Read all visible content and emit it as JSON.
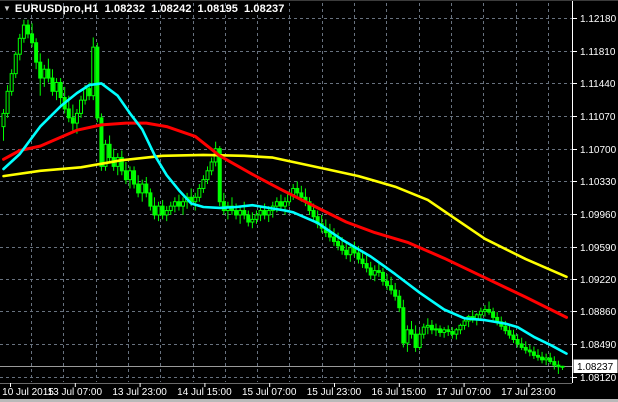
{
  "window": {
    "dropdown_icon": "▼",
    "title_symbol": "EURUSDpro,H1",
    "title_open": "1.08232",
    "title_high": "1.08242",
    "title_low": "1.08195",
    "title_close": "1.08237"
  },
  "chart_data": {
    "type": "candlestick",
    "symbol": "EURUSDpro",
    "timeframe": "H1",
    "title": "EURUSDpro,H1  1.08232 1.08242 1.08195 1.08237",
    "grid": true,
    "legend_position": "none",
    "ylim": [
      1.0812,
      1.1218
    ],
    "colors": {
      "background": "#000000",
      "grid": "#68727f",
      "candle_outline": "#00FF00",
      "bull_body": "#000000",
      "bear_body": "#00FF00",
      "ma_fast": "#00FFFF",
      "ma_mid": "#FF0000",
      "ma_slow": "#FFFF00",
      "axis_text": "#FFFFFF",
      "bid_line": "#9a9a9a",
      "bid_box_bg": "#FFFFFF",
      "bid_box_text": "#000000"
    },
    "y_axis": {
      "labels": [
        "1.12180",
        "1.11810",
        "1.11440",
        "1.11070",
        "1.10700",
        "1.10330",
        "1.09960",
        "1.09590",
        "1.09220",
        "1.08860",
        "1.08490",
        "1.08120"
      ]
    },
    "x_axis": {
      "labels": [
        "10 Jul 2015",
        "13 Jul 07:00",
        "13 Jul 23:00",
        "14 Jul 15:00",
        "15 Jul 07:00",
        "15 Jul 23:00",
        "16 Jul 15:00",
        "17 Jul 07:00",
        "17 Jul 23:00"
      ]
    },
    "bid": {
      "price": 1.08237,
      "label": "1.08237"
    },
    "candles": [
      [
        1.1095,
        1.1115,
        1.1079,
        1.111
      ],
      [
        1.111,
        1.1142,
        1.1105,
        1.1135
      ],
      [
        1.1135,
        1.116,
        1.113,
        1.1155
      ],
      [
        1.1155,
        1.118,
        1.115,
        1.1177
      ],
      [
        1.1177,
        1.12,
        1.117,
        1.1195
      ],
      [
        1.1195,
        1.1216,
        1.119,
        1.121
      ],
      [
        1.121,
        1.1216,
        1.1195,
        1.12
      ],
      [
        1.12,
        1.1212,
        1.1185,
        1.119
      ],
      [
        1.119,
        1.1195,
        1.116,
        1.1168
      ],
      [
        1.1168,
        1.1178,
        1.113,
        1.115
      ],
      [
        1.115,
        1.1165,
        1.114,
        1.116
      ],
      [
        1.116,
        1.1172,
        1.1145,
        1.115
      ],
      [
        1.115,
        1.116,
        1.113,
        1.1135
      ],
      [
        1.1135,
        1.115,
        1.1125,
        1.1145
      ],
      [
        1.1145,
        1.115,
        1.112,
        1.1128
      ],
      [
        1.1128,
        1.114,
        1.111,
        1.1115
      ],
      [
        1.1115,
        1.113,
        1.11,
        1.1105
      ],
      [
        1.1105,
        1.112,
        1.109,
        1.1099
      ],
      [
        1.1099,
        1.1115,
        1.1087,
        1.111
      ],
      [
        1.111,
        1.113,
        1.1105,
        1.1125
      ],
      [
        1.1125,
        1.1142,
        1.112,
        1.1138
      ],
      [
        1.1138,
        1.1145,
        1.1125,
        1.113
      ],
      [
        1.113,
        1.1196,
        1.1125,
        1.1185
      ],
      [
        1.1185,
        1.119,
        1.11,
        1.1105
      ],
      [
        1.1105,
        1.111,
        1.1045,
        1.105
      ],
      [
        1.105,
        1.108,
        1.1045,
        1.1075
      ],
      [
        1.1075,
        1.1085,
        1.1055,
        1.106
      ],
      [
        1.106,
        1.107,
        1.1045,
        1.105
      ],
      [
        1.105,
        1.1065,
        1.104,
        1.106
      ],
      [
        1.106,
        1.1068,
        1.104,
        1.1045
      ],
      [
        1.1045,
        1.1055,
        1.103,
        1.1035
      ],
      [
        1.1035,
        1.105,
        1.1025,
        1.1045
      ],
      [
        1.1045,
        1.105,
        1.1025,
        1.103
      ],
      [
        1.103,
        1.104,
        1.1015,
        1.102
      ],
      [
        1.102,
        1.1035,
        1.101,
        1.103
      ],
      [
        1.103,
        1.1038,
        1.1015,
        1.102
      ],
      [
        1.102,
        1.1025,
        1.1,
        1.1005
      ],
      [
        1.1005,
        1.1015,
        1.099,
        1.0995
      ],
      [
        1.0995,
        1.101,
        1.0988,
        1.1005
      ],
      [
        1.1005,
        1.1012,
        1.099,
        1.0995
      ],
      [
        1.0995,
        1.1005,
        1.0988,
        1.1
      ],
      [
        1.1,
        1.101,
        1.0995,
        1.1005
      ],
      [
        1.1005,
        1.1015,
        1.0998,
        1.101
      ],
      [
        1.101,
        1.1018,
        1.1,
        1.1005
      ],
      [
        1.1005,
        1.1015,
        1.0995,
        1.101
      ],
      [
        1.101,
        1.102,
        1.1002,
        1.1015
      ],
      [
        1.1015,
        1.1025,
        1.1005,
        1.101
      ],
      [
        1.101,
        1.102,
        1.1,
        1.1015
      ],
      [
        1.1015,
        1.103,
        1.101,
        1.1025
      ],
      [
        1.1025,
        1.104,
        1.102,
        1.1035
      ],
      [
        1.1035,
        1.105,
        1.103,
        1.1045
      ],
      [
        1.1045,
        1.106,
        1.104,
        1.1055
      ],
      [
        1.1055,
        1.1078,
        1.105,
        1.107
      ],
      [
        1.107,
        1.1073,
        1.1005,
        1.101
      ],
      [
        1.101,
        1.102,
        1.0995,
        1.1
      ],
      [
        1.1,
        1.101,
        1.099,
        1.1005
      ],
      [
        1.1005,
        1.1015,
        1.0995,
        1.1
      ],
      [
        1.1,
        1.1008,
        1.099,
        1.0995
      ],
      [
        1.0995,
        1.1005,
        1.0985,
        1.1
      ],
      [
        1.1,
        1.101,
        1.099,
        1.0995
      ],
      [
        1.0995,
        1.1,
        1.0982,
        1.0987
      ],
      [
        1.0987,
        1.0998,
        1.098,
        1.099
      ],
      [
        1.099,
        1.1,
        1.0985,
        1.0995
      ],
      [
        1.0995,
        1.1005,
        1.0988,
        1.1
      ],
      [
        1.1,
        1.1008,
        1.099,
        1.0995
      ],
      [
        1.0995,
        1.1005,
        1.0987,
        1.1
      ],
      [
        1.1,
        1.101,
        1.0992,
        1.1005
      ],
      [
        1.1005,
        1.1015,
        1.0998,
        1.101
      ],
      [
        1.101,
        1.1018,
        1.1,
        1.1005
      ],
      [
        1.1005,
        1.1015,
        1.0995,
        1.101
      ],
      [
        1.101,
        1.1022,
        1.1005,
        1.1018
      ],
      [
        1.1018,
        1.103,
        1.1012,
        1.1025
      ],
      [
        1.1025,
        1.1033,
        1.1015,
        1.102
      ],
      [
        1.102,
        1.1028,
        1.101,
        1.1015
      ],
      [
        1.1015,
        1.1025,
        1.1005,
        1.101
      ],
      [
        1.101,
        1.1015,
        1.0995,
        1.1
      ],
      [
        1.1,
        1.1008,
        1.0988,
        1.0993
      ],
      [
        1.0993,
        1.1,
        1.098,
        1.0985
      ],
      [
        1.0985,
        1.0995,
        1.0975,
        1.098
      ],
      [
        1.098,
        1.099,
        1.097,
        1.0975
      ],
      [
        1.0975,
        1.0985,
        1.0965,
        1.097
      ],
      [
        1.097,
        1.098,
        1.096,
        1.0965
      ],
      [
        1.0965,
        1.0975,
        1.0955,
        1.096
      ],
      [
        1.096,
        1.097,
        1.095,
        1.0955
      ],
      [
        1.0955,
        1.0965,
        1.0945,
        1.095
      ],
      [
        1.095,
        1.0962,
        1.0942,
        1.0958
      ],
      [
        1.0958,
        1.0965,
        1.0948,
        1.0952
      ],
      [
        1.0952,
        1.096,
        1.094,
        1.0945
      ],
      [
        1.0945,
        1.0955,
        1.0935,
        1.094
      ],
      [
        1.094,
        1.095,
        1.093,
        1.0935
      ],
      [
        1.0935,
        1.0942,
        1.0922,
        1.0927
      ],
      [
        1.0927,
        1.0938,
        1.092,
        1.0932
      ],
      [
        1.0932,
        1.094,
        1.0925,
        1.093
      ],
      [
        1.093,
        1.0935,
        1.0915,
        1.092
      ],
      [
        1.092,
        1.0928,
        1.091,
        1.0915
      ],
      [
        1.0915,
        1.0925,
        1.0905,
        1.091
      ],
      [
        1.091,
        1.0918,
        1.0898,
        1.0903
      ],
      [
        1.0903,
        1.091,
        1.0885,
        1.089
      ],
      [
        1.089,
        1.0899,
        1.0845,
        1.085
      ],
      [
        1.085,
        1.087,
        1.084,
        1.0865
      ],
      [
        1.0865,
        1.0875,
        1.0855,
        1.086
      ],
      [
        1.086,
        1.087,
        1.084,
        1.0845
      ],
      [
        1.0845,
        1.0865,
        1.0842,
        1.086
      ],
      [
        1.086,
        1.0872,
        1.0855,
        1.0868
      ],
      [
        1.0868,
        1.0878,
        1.086,
        1.087
      ],
      [
        1.087,
        1.0876,
        1.086,
        1.0865
      ],
      [
        1.0865,
        1.0872,
        1.0858,
        1.0866
      ],
      [
        1.0866,
        1.087,
        1.0857,
        1.0862
      ],
      [
        1.0862,
        1.0868,
        1.0856,
        1.0865
      ],
      [
        1.0865,
        1.087,
        1.0858,
        1.0863
      ],
      [
        1.0863,
        1.0868,
        1.0855,
        1.086
      ],
      [
        1.086,
        1.0867,
        1.0854,
        1.0865
      ],
      [
        1.0865,
        1.0872,
        1.086,
        1.087
      ],
      [
        1.087,
        1.0878,
        1.0865,
        1.0875
      ],
      [
        1.0875,
        1.0882,
        1.0868,
        1.088
      ],
      [
        1.088,
        1.0887,
        1.0873,
        1.0876
      ],
      [
        1.0876,
        1.0884,
        1.087,
        1.0882
      ],
      [
        1.0882,
        1.089,
        1.0876,
        1.0886
      ],
      [
        1.0886,
        1.0893,
        1.088,
        1.0888
      ],
      [
        1.0888,
        1.0897,
        1.0882,
        1.0885
      ],
      [
        1.0885,
        1.089,
        1.0875,
        1.0879
      ],
      [
        1.0879,
        1.0885,
        1.087,
        1.0874
      ],
      [
        1.0874,
        1.088,
        1.0865,
        1.0869
      ],
      [
        1.0869,
        1.0875,
        1.086,
        1.0864
      ],
      [
        1.0864,
        1.087,
        1.0855,
        1.0859
      ],
      [
        1.0859,
        1.0865,
        1.085,
        1.0854
      ],
      [
        1.0854,
        1.086,
        1.0845,
        1.0849
      ],
      [
        1.0849,
        1.0856,
        1.0842,
        1.0845
      ],
      [
        1.0845,
        1.0852,
        1.0838,
        1.0842
      ],
      [
        1.0842,
        1.0848,
        1.0835,
        1.084
      ],
      [
        1.084,
        1.0846,
        1.0832,
        1.0836
      ],
      [
        1.0836,
        1.0843,
        1.083,
        1.0834
      ],
      [
        1.0834,
        1.084,
        1.0827,
        1.0831
      ],
      [
        1.0831,
        1.0838,
        1.0825,
        1.0833
      ],
      [
        1.0833,
        1.0839,
        1.0826,
        1.0829
      ],
      [
        1.0829,
        1.0835,
        1.082,
        1.0825
      ],
      [
        1.0825,
        1.083,
        1.0815,
        1.08232
      ],
      [
        1.08232,
        1.08242,
        1.08195,
        1.08237
      ]
    ],
    "ma_lines": [
      {
        "name": "slow-ma-yellow",
        "color": "#FFFF00",
        "width": 2.6,
        "points": [
          [
            0,
            1.1039
          ],
          [
            9,
            1.1045
          ],
          [
            19,
            1.1049
          ],
          [
            29,
            1.1057
          ],
          [
            39,
            1.1062
          ],
          [
            49,
            1.1063
          ],
          [
            59,
            1.1062
          ],
          [
            66,
            1.106
          ],
          [
            71,
            1.1055
          ],
          [
            79,
            1.1047
          ],
          [
            87,
            1.1039
          ],
          [
            96,
            1.1027
          ],
          [
            104,
            1.1012
          ],
          [
            110,
            1.0993
          ],
          [
            118,
            1.0968
          ],
          [
            128,
            1.0945
          ],
          [
            138,
            1.0925
          ]
        ]
      },
      {
        "name": "mid-ma-red",
        "color": "#FF0000",
        "width": 3,
        "points": [
          [
            0,
            1.1058
          ],
          [
            4,
            1.1068
          ],
          [
            9,
            1.1073
          ],
          [
            18,
            1.1091
          ],
          [
            24,
            1.1097
          ],
          [
            30,
            1.1099
          ],
          [
            35,
            1.1099
          ],
          [
            40,
            1.1095
          ],
          [
            47,
            1.1084
          ],
          [
            53,
            1.1062
          ],
          [
            61,
            1.1041
          ],
          [
            68,
            1.1024
          ],
          [
            77,
            1.1003
          ],
          [
            84,
            1.0987
          ],
          [
            91,
            1.0975
          ],
          [
            99,
            1.0964
          ],
          [
            108,
            1.0946
          ],
          [
            118,
            1.0924
          ],
          [
            128,
            1.0902
          ],
          [
            138,
            1.0879
          ]
        ]
      },
      {
        "name": "fast-ma-cyan",
        "color": "#00FFFF",
        "width": 2.6,
        "points": [
          [
            0,
            1.1047
          ],
          [
            4,
            1.1064
          ],
          [
            9,
            1.1095
          ],
          [
            14,
            1.1118
          ],
          [
            18,
            1.1133
          ],
          [
            21,
            1.1142
          ],
          [
            24,
            1.1144
          ],
          [
            28,
            1.113
          ],
          [
            31,
            1.111
          ],
          [
            34,
            1.1092
          ],
          [
            37,
            1.1063
          ],
          [
            40,
            1.104
          ],
          [
            43,
            1.1023
          ],
          [
            46,
            1.1008
          ],
          [
            49,
            1.1004
          ],
          [
            53,
            1.1003
          ],
          [
            57,
            1.1004
          ],
          [
            61,
            1.1006
          ],
          [
            65,
            1.1003
          ],
          [
            69,
            1.1
          ],
          [
            71,
            1.0998
          ],
          [
            77,
            1.0986
          ],
          [
            83,
            1.0967
          ],
          [
            90,
            1.0948
          ],
          [
            96,
            1.0928
          ],
          [
            102,
            1.0907
          ],
          [
            108,
            1.0888
          ],
          [
            113,
            1.0878
          ],
          [
            118,
            1.0876
          ],
          [
            123,
            1.0872
          ],
          [
            126,
            1.0868
          ],
          [
            130,
            1.0857
          ],
          [
            134,
            1.0848
          ],
          [
            138,
            1.0838
          ]
        ]
      }
    ]
  }
}
